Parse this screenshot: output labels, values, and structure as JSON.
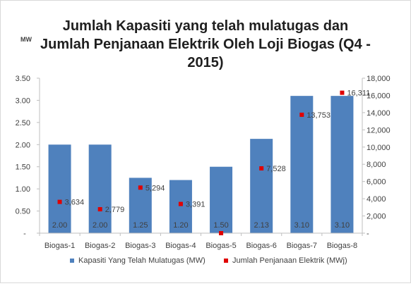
{
  "chart_data": {
    "type": "bar",
    "title_lines": [
      "Jumlah Kapasiti yang telah mulatugas dan",
      "Jumlah Penjanaan Elektrik Oleh Loji Biogas (Q4 -",
      "2015)"
    ],
    "y_unit_label": "MW",
    "categories": [
      "Biogas-1",
      "Biogas-2",
      "Biogas-3",
      "Biogas-4",
      "Biogas-5",
      "Biogas-6",
      "Biogas-7",
      "Biogas-8"
    ],
    "series": [
      {
        "name": "Kapasiti Yang Telah Mulatugas (MW)",
        "type": "bar",
        "axis": "left",
        "color": "#4f81bd",
        "values": [
          2.0,
          2.0,
          1.25,
          1.2,
          1.5,
          2.13,
          3.1,
          3.1
        ],
        "labels": [
          "2.00",
          "2.00",
          "1.25",
          "1.20",
          "1.50",
          "2.13",
          "3.10",
          "3.10"
        ]
      },
      {
        "name": "Jumlah Penjanaan Elektrik (MWj)",
        "type": "scatter",
        "axis": "right",
        "color": "#e00000",
        "values": [
          3634,
          2779,
          5294,
          3391,
          0,
          7528,
          13753,
          16311
        ],
        "labels": [
          "3,634",
          "2,779",
          "5,294",
          "3,391",
          "",
          "7,528",
          "13,753",
          "16,311"
        ]
      }
    ],
    "y_left": {
      "min": 0,
      "max": 3.5,
      "ticks": [
        "-",
        "0.50",
        "1.00",
        "1.50",
        "2.00",
        "2.50",
        "3.00",
        "3.50"
      ]
    },
    "y_right": {
      "min": 0,
      "max": 18000,
      "ticks": [
        "-",
        "2,000",
        "4,000",
        "6,000",
        "8,000",
        "10,000",
        "12,000",
        "14,000",
        "16,000",
        "18,000"
      ]
    },
    "grid": false,
    "legend_position": "bottom"
  }
}
